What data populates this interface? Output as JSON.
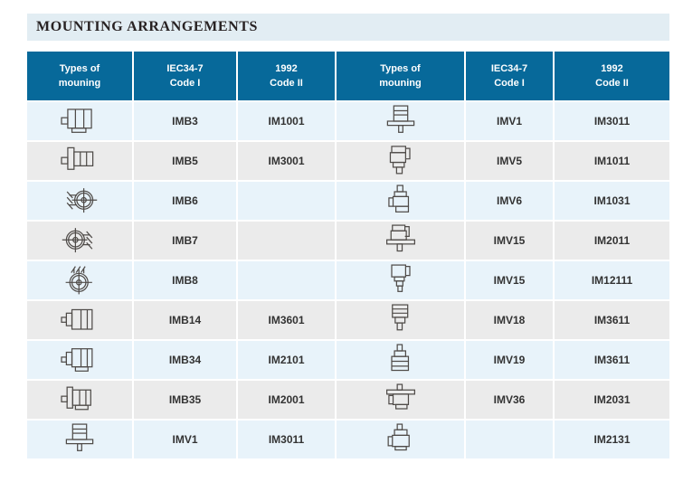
{
  "title": "MOUNTING ARRANGEMENTS",
  "colors": {
    "header_bg": "#07699a",
    "row_blue": "#e8f3fa",
    "row_gray": "#ebebeb",
    "title_bar_bg": "#e2edf3",
    "header_text": "#ffffff",
    "code_text": "#333333",
    "icon_stroke": "#4f4b48"
  },
  "table": {
    "headers": [
      {
        "line1": "Types of",
        "line2": "mouning"
      },
      {
        "line1": "IEC34-7",
        "line2": "Code I"
      },
      {
        "line1": "1992",
        "line2": "Code II"
      },
      {
        "line1": "Types of",
        "line2": "mouning"
      },
      {
        "line1": "IEC34-7",
        "line2": "Code I"
      },
      {
        "line1": "1992",
        "line2": "Code II"
      }
    ],
    "rows": [
      {
        "left": {
          "icon": "motor-b3-foot-icon",
          "code1": "IMB3",
          "code2": "IM1001"
        },
        "right": {
          "icon": "motor-v1-flange-down-icon",
          "code1": "IMV1",
          "code2": "IM3011"
        }
      },
      {
        "left": {
          "icon": "motor-b5-flange-icon",
          "code1": "IMB5",
          "code2": "IM3001"
        },
        "right": {
          "icon": "motor-v5-foot-down-icon",
          "code1": "IMV5",
          "code2": "IM1011"
        }
      },
      {
        "left": {
          "icon": "motor-b6-wall-left-icon",
          "code1": "IMB6",
          "code2": ""
        },
        "right": {
          "icon": "motor-v6-foot-up-icon",
          "code1": "IMV6",
          "code2": "IM1031"
        }
      },
      {
        "left": {
          "icon": "motor-b7-wall-right-icon",
          "code1": "IMB7",
          "code2": ""
        },
        "right": {
          "icon": "motor-v15-foot-flange-icon",
          "code1": "IMV15",
          "code2": "IM2011"
        }
      },
      {
        "left": {
          "icon": "motor-b8-ceiling-icon",
          "code1": "IMB8",
          "code2": ""
        },
        "right": {
          "icon": "motor-v15-shaft-down-icon",
          "code1": "IMV15",
          "code2": "IM12111"
        }
      },
      {
        "left": {
          "icon": "motor-b14-face-icon",
          "code1": "IMB14",
          "code2": "IM3601"
        },
        "right": {
          "icon": "motor-v18-face-down-icon",
          "code1": "IMV18",
          "code2": "IM3611"
        }
      },
      {
        "left": {
          "icon": "motor-b34-foot-face-icon",
          "code1": "IMB34",
          "code2": "IM2101"
        },
        "right": {
          "icon": "motor-v19-face-up-icon",
          "code1": "IMV19",
          "code2": "IM3611"
        }
      },
      {
        "left": {
          "icon": "motor-b35-foot-flange-icon",
          "code1": "IMB35",
          "code2": "IM2001"
        },
        "right": {
          "icon": "motor-v36-flange-up-icon",
          "code1": "IMV36",
          "code2": "IM2031"
        }
      },
      {
        "left": {
          "icon": "motor-v1-flange-down-icon",
          "code1": "IMV1",
          "code2": "IM3011"
        },
        "right": {
          "icon": "motor-v-shaft-up-icon",
          "code1": "",
          "code2": "IM2131"
        }
      }
    ]
  }
}
